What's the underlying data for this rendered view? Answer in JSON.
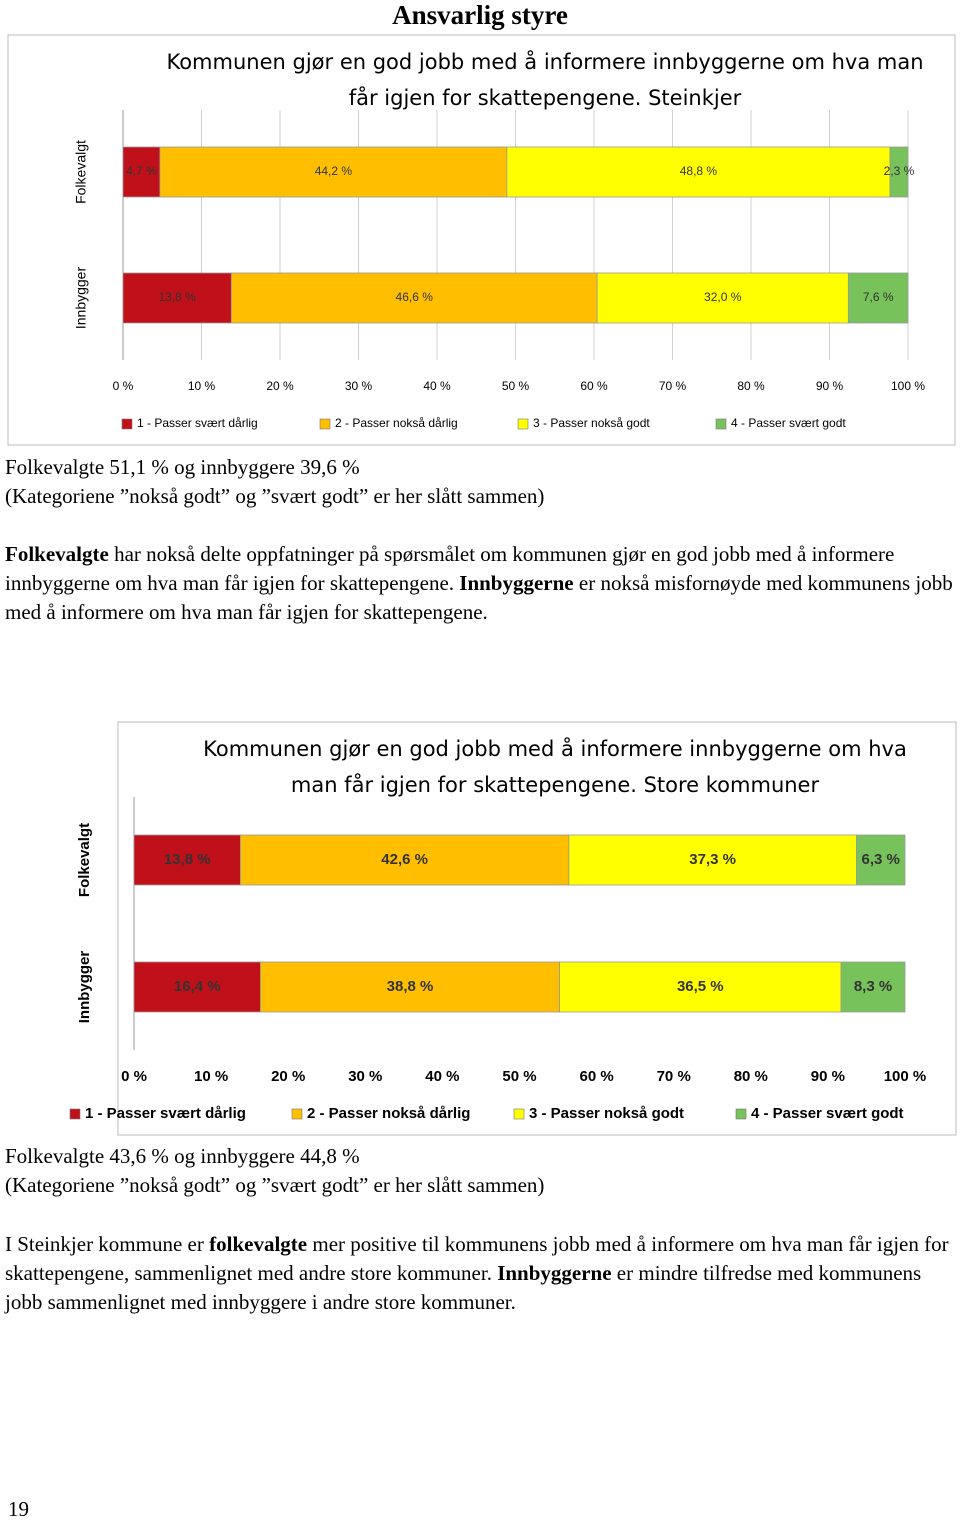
{
  "heading": "Ansvarlig styre",
  "chart_data": [
    {
      "type": "stacked_barh",
      "title": "Kommunen gjør en god jobb med å informere innbyggerne om hva man får igjen for skattepengene. Steinkjer",
      "categories": [
        "Folkevalgt",
        "Innbygger"
      ],
      "series": [
        {
          "name": "1 - Passer svært dårlig",
          "color": "#c0101a",
          "values": [
            4.7,
            13.8
          ],
          "value_labels": [
            "4,7 %",
            "13,8 %"
          ]
        },
        {
          "name": "2 - Passer nokså dårlig",
          "color": "#ffbf00",
          "values": [
            44.2,
            46.6
          ],
          "value_labels": [
            "44,2 %",
            "46,6 %"
          ]
        },
        {
          "name": "3 - Passer nokså godt",
          "color": "#ffff00",
          "values": [
            48.8,
            32.0
          ],
          "value_labels": [
            "48,8 %",
            "32,0 %"
          ]
        },
        {
          "name": "4 - Passer svært godt",
          "color": "#77c25a",
          "values": [
            2.3,
            7.6
          ],
          "value_labels": [
            "2,3 %",
            "7,6 %"
          ]
        }
      ],
      "xlim": [
        0,
        100
      ],
      "xticks": [
        {
          "value": 0,
          "label": "0 %"
        },
        {
          "value": 10,
          "label": "10 %"
        },
        {
          "value": 20,
          "label": "20 %"
        },
        {
          "value": 30,
          "label": "30 %"
        },
        {
          "value": 40,
          "label": "40 %"
        },
        {
          "value": 50,
          "label": "50 %"
        },
        {
          "value": 60,
          "label": "60 %"
        },
        {
          "value": 70,
          "label": "70 %"
        },
        {
          "value": 80,
          "label": "80 %"
        },
        {
          "value": 90,
          "label": "90 %"
        },
        {
          "value": 100,
          "label": "100 %"
        }
      ],
      "grid": true,
      "legend": "bottom"
    },
    {
      "type": "stacked_barh",
      "title": "Kommunen gjør en god jobb med å informere innbyggerne om hva man får igjen for skattepengene. Store kommuner",
      "categories": [
        "Folkevalgt",
        "Innbygger"
      ],
      "series": [
        {
          "name": "1 - Passer svært dårlig",
          "color": "#c0101a",
          "values": [
            13.8,
            16.4
          ],
          "value_labels": [
            "13,8 %",
            "16,4 %"
          ]
        },
        {
          "name": "2 - Passer nokså dårlig",
          "color": "#ffbf00",
          "values": [
            42.6,
            38.8
          ],
          "value_labels": [
            "42,6 %",
            "38,8 %"
          ]
        },
        {
          "name": "3 - Passer nokså godt",
          "color": "#ffff00",
          "values": [
            37.3,
            36.5
          ],
          "value_labels": [
            "37,3 %",
            "36,5 %"
          ]
        },
        {
          "name": "4 - Passer svært godt",
          "color": "#77c25a",
          "values": [
            6.3,
            8.3
          ],
          "value_labels": [
            "6,3 %",
            "8,3 %"
          ]
        }
      ],
      "xlim": [
        0,
        100
      ],
      "xticks": [
        {
          "value": 0,
          "label": "0 %"
        },
        {
          "value": 10,
          "label": "10 %"
        },
        {
          "value": 20,
          "label": "20 %"
        },
        {
          "value": 30,
          "label": "30 %"
        },
        {
          "value": 40,
          "label": "40 %"
        },
        {
          "value": 50,
          "label": "50 %"
        },
        {
          "value": 60,
          "label": "60 %"
        },
        {
          "value": 70,
          "label": "70 %"
        },
        {
          "value": 80,
          "label": "80 %"
        },
        {
          "value": 90,
          "label": "90 %"
        },
        {
          "value": 100,
          "label": "100 %"
        }
      ],
      "grid": false,
      "legend": "bottom"
    }
  ],
  "summaries": [
    [
      "Folkevalgte 51,1 % og innbyggere 39,6 %",
      "(Kategoriene ”nokså godt” og ”svært godt” er her slått sammen)"
    ],
    [
      "Folkevalgte 43,6 % og innbyggere 44,8 %",
      "(Kategoriene ”nokså godt” og ”svært godt” er her slått sammen)"
    ]
  ],
  "paragraphs": [
    [
      {
        "text": "Folkevalgte",
        "bold": true
      },
      {
        "text": " har nokså delte oppfatninger på spørsmålet om kommunen gjør en god jobb med å informere innbyggerne om hva man får igjen for skattepengene. "
      },
      {
        "text": "Innbyggerne",
        "bold": true
      },
      {
        "text": " er nokså misfornøyde med kommunens jobb med å informere om hva man får igjen for skattepengene."
      }
    ],
    [
      {
        "text": "I Steinkjer kommune er "
      },
      {
        "text": "folkevalgte",
        "bold": true
      },
      {
        "text": " mer positive til kommunens jobb med å informere om hva man får igjen for skattepengene, sammenlignet med andre store kommuner. "
      },
      {
        "text": "Innbyggerne",
        "bold": true
      },
      {
        "text": " er mindre tilfredse med kommunens jobb sammenlignet med innbyggere i andre store kommuner."
      }
    ]
  ],
  "page_number": "19"
}
